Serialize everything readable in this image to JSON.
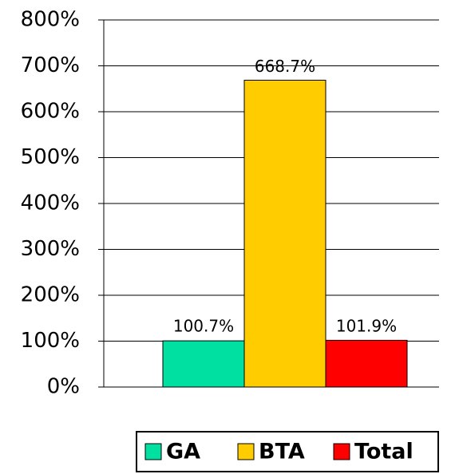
{
  "chart_data": {
    "type": "bar",
    "categories": [
      null
    ],
    "series": [
      {
        "name": "GA",
        "color": "#00e0a0",
        "values": [
          100.7
        ],
        "value_labels": [
          "100.7%"
        ]
      },
      {
        "name": "BTA",
        "color": "#ffcc00",
        "values": [
          668.7
        ],
        "value_labels": [
          "668.7%"
        ]
      },
      {
        "name": "Total",
        "color": "#ff0000",
        "values": [
          101.9
        ],
        "value_labels": [
          "101.9%"
        ]
      }
    ],
    "ylim": [
      0,
      800
    ],
    "yticks": [
      {
        "value": 0,
        "label": "0%"
      },
      {
        "value": 100,
        "label": "100%"
      },
      {
        "value": 200,
        "label": "200%"
      },
      {
        "value": 300,
        "label": "300%"
      },
      {
        "value": 400,
        "label": "400%"
      },
      {
        "value": 500,
        "label": "500%"
      },
      {
        "value": 600,
        "label": "600%"
      },
      {
        "value": 700,
        "label": "700%"
      },
      {
        "value": 800,
        "label": "800%"
      }
    ],
    "grid": true,
    "legend": "bottom"
  }
}
